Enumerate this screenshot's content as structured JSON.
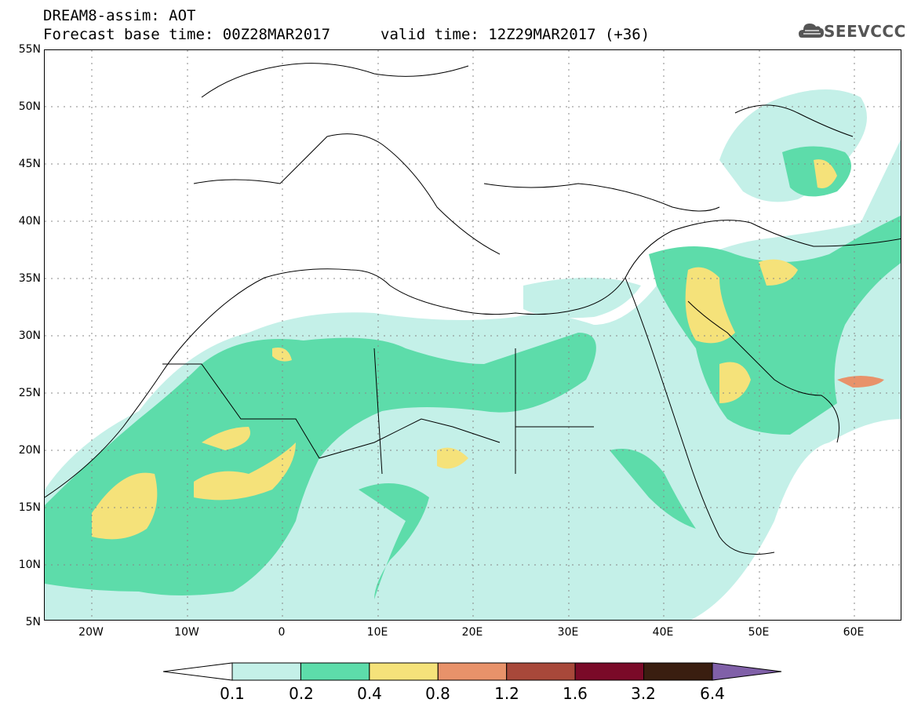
{
  "header": {
    "title_line1": "DREAM8-assim: AOT",
    "title_line2": "Forecast base time: 00Z28MAR2017",
    "valid_time": "valid time: 12Z29MAR2017 (+36)",
    "logo_text": "SEEVCCC"
  },
  "map": {
    "projection": "lat-lon",
    "lon_range": [
      -25,
      65
    ],
    "lat_range": [
      5,
      55
    ],
    "lat_labels": [
      "55N",
      "50N",
      "45N",
      "40N",
      "35N",
      "30N",
      "25N",
      "20N",
      "15N",
      "10N",
      "5N"
    ],
    "lon_labels": [
      "20W",
      "10W",
      "0",
      "10E",
      "20E",
      "30E",
      "40E",
      "50E",
      "60E"
    ],
    "grid": "dotted"
  },
  "legend": {
    "labels": [
      "0.1",
      "0.2",
      "0.4",
      "0.8",
      "1.2",
      "1.6",
      "3.2",
      "6.4"
    ],
    "colors": [
      "#ffffff",
      "#c4f0e8",
      "#5ddcaa",
      "#f5e27a",
      "#e8926a",
      "#a8483a",
      "#7a0a28",
      "#3a1e10",
      "#8060a8"
    ]
  }
}
